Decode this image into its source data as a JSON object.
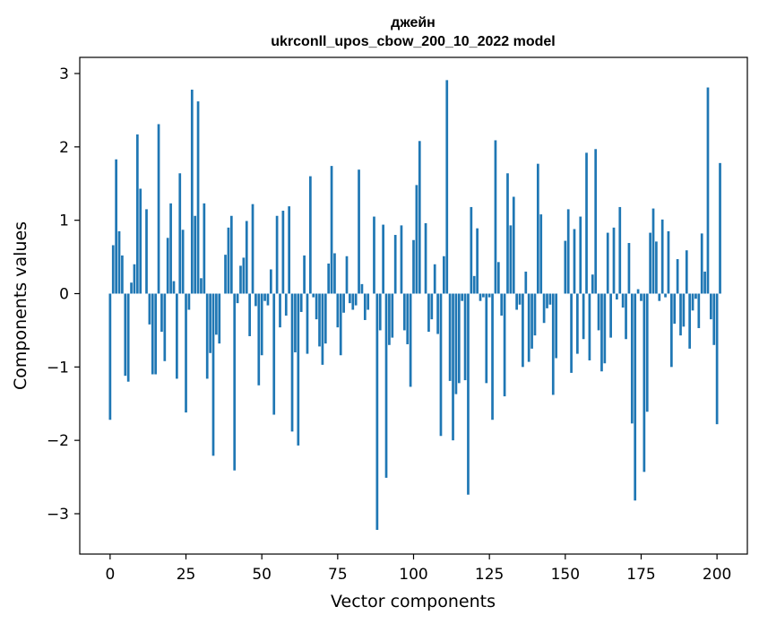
{
  "chart_data": {
    "type": "bar",
    "title": "джейн",
    "subtitle": "ukrconll_upos_cbow_200_10_2022 model",
    "xlabel": "Vector components",
    "ylabel": "Components values",
    "xlim": [
      -10,
      210
    ],
    "ylim": [
      -3.55,
      3.22
    ],
    "xticks": [
      0,
      25,
      50,
      75,
      100,
      125,
      150,
      175,
      200
    ],
    "xtick_labels": [
      "0",
      "25",
      "50",
      "75",
      "100",
      "125",
      "150",
      "175",
      "200"
    ],
    "yticks": [
      3,
      2,
      1,
      0,
      -1,
      -2,
      -3
    ],
    "ytick_labels": [
      "3",
      "2",
      "1",
      "0",
      "−1",
      "−2",
      "−3"
    ],
    "bar_color": "#1f77b4",
    "grid": false,
    "legend": "none",
    "values": [
      -1.72,
      0.66,
      1.83,
      0.85,
      0.52,
      -1.12,
      -1.2,
      0.15,
      0.4,
      2.17,
      1.43,
      0.0,
      1.15,
      -0.42,
      -1.1,
      -1.1,
      2.31,
      -0.52,
      -0.92,
      0.76,
      1.23,
      0.17,
      -1.16,
      1.64,
      0.87,
      -1.62,
      -0.22,
      2.78,
      1.06,
      2.62,
      0.21,
      1.23,
      -1.16,
      -0.81,
      -2.21,
      -0.56,
      -0.68,
      0.0,
      0.53,
      0.9,
      1.06,
      -2.41,
      -0.13,
      0.38,
      0.49,
      0.99,
      -0.58,
      1.22,
      -0.17,
      -1.25,
      -0.84,
      -0.1,
      -0.16,
      0.33,
      -1.65,
      1.06,
      -0.46,
      1.13,
      -0.3,
      1.19,
      -1.88,
      -0.8,
      -2.07,
      -0.25,
      0.52,
      -0.82,
      1.6,
      -0.05,
      -0.35,
      -0.72,
      -0.97,
      -0.68,
      0.41,
      1.74,
      0.55,
      -0.46,
      -0.84,
      -0.26,
      0.51,
      -0.13,
      -0.22,
      -0.16,
      1.69,
      0.13,
      -0.36,
      -0.22,
      0.0,
      1.05,
      -3.22,
      -0.5,
      0.94,
      -2.51,
      -0.7,
      -0.6,
      0.8,
      0.0,
      0.93,
      -0.5,
      -0.69,
      -1.27,
      0.73,
      1.48,
      2.08,
      0.0,
      0.96,
      -0.52,
      -0.35,
      0.4,
      -0.55,
      -1.94,
      0.51,
      2.91,
      -1.19,
      -2.0,
      -1.37,
      -1.22,
      -0.1,
      -1.18,
      -2.74,
      1.18,
      0.24,
      0.89,
      -0.1,
      -0.05,
      -1.22,
      -0.05,
      -1.72,
      2.09,
      0.43,
      -0.3,
      -1.4,
      1.64,
      0.93,
      1.32,
      -0.22,
      -0.15,
      -1.0,
      0.3,
      -0.93,
      -0.75,
      -0.57,
      1.77,
      1.08,
      -0.4,
      -0.2,
      -0.15,
      -1.38,
      -0.88,
      0.0,
      0.0,
      0.72,
      1.15,
      -1.08,
      0.88,
      -0.82,
      1.05,
      -0.62,
      1.92,
      -0.91,
      0.26,
      1.97,
      -0.5,
      -1.06,
      -0.95,
      0.83,
      -0.6,
      0.9,
      -0.08,
      1.18,
      -0.19,
      -0.62,
      0.69,
      -1.77,
      -2.82,
      0.06,
      -0.1,
      -2.43,
      -1.61,
      0.83,
      1.16,
      0.71,
      -0.1,
      1.01,
      -0.05,
      0.85,
      -1.0,
      -0.41,
      0.47,
      -0.57,
      -0.45,
      0.59,
      -0.75,
      -0.23,
      -0.07,
      -0.47,
      0.82,
      0.3,
      2.81,
      -0.35,
      -0.7,
      -1.78,
      1.78
    ]
  }
}
